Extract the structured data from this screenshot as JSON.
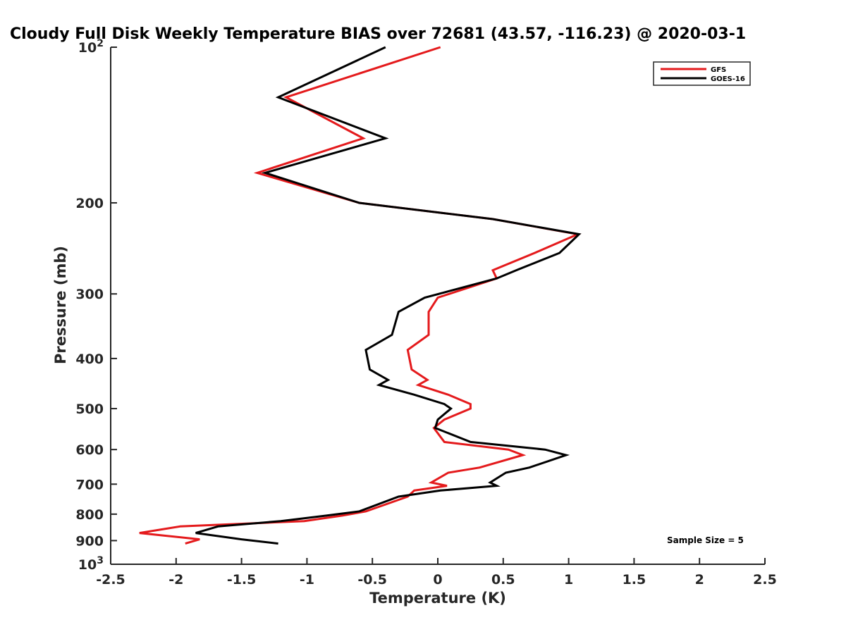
{
  "chart_data": {
    "type": "line",
    "title": "Cloudy Full Disk Weekly Temperature BIAS over 72681 (43.57, -116.23) @ 2020-03-1",
    "xlabel": "Temperature (K)",
    "ylabel": "Pressure (mb)",
    "xlim": [
      -2.5,
      2.5
    ],
    "ylim": [
      100,
      1000
    ],
    "y_scale": "log",
    "y_reversed": true,
    "x_ticks": [
      "-2.5",
      "-2",
      "-1.5",
      "-1",
      "-0.5",
      "0",
      "0.5",
      "1",
      "1.5",
      "2",
      "2.5"
    ],
    "y_ticks": [
      {
        "value": 100,
        "base": "10",
        "exp": "2",
        "label": ""
      },
      {
        "value": 200,
        "base": "",
        "exp": "",
        "label": "200"
      },
      {
        "value": 300,
        "base": "",
        "exp": "",
        "label": "300"
      },
      {
        "value": 400,
        "base": "",
        "exp": "",
        "label": "400"
      },
      {
        "value": 500,
        "base": "",
        "exp": "",
        "label": "500"
      },
      {
        "value": 600,
        "base": "",
        "exp": "",
        "label": "600"
      },
      {
        "value": 700,
        "base": "",
        "exp": "",
        "label": "700"
      },
      {
        "value": 800,
        "base": "",
        "exp": "",
        "label": "800"
      },
      {
        "value": 900,
        "base": "",
        "exp": "",
        "label": "900"
      },
      {
        "value": 1000,
        "base": "10",
        "exp": "3",
        "label": ""
      }
    ],
    "grid": false,
    "legend_position": "top-right",
    "annotation": "Sample Size = 5",
    "series": [
      {
        "name": "GFS",
        "color": "#e41a1c",
        "points": [
          [
            0.02,
            100
          ],
          [
            -1.16,
            125
          ],
          [
            -0.57,
            150
          ],
          [
            -1.38,
            175
          ],
          [
            -0.6,
            200
          ],
          [
            0.42,
            215
          ],
          [
            1.07,
            230
          ],
          [
            0.74,
            250
          ],
          [
            0.42,
            270
          ],
          [
            0.45,
            280
          ],
          [
            0.0,
            305
          ],
          [
            -0.07,
            325
          ],
          [
            -0.07,
            360
          ],
          [
            -0.23,
            385
          ],
          [
            -0.2,
            420
          ],
          [
            -0.08,
            440
          ],
          [
            -0.15,
            450
          ],
          [
            0.08,
            470
          ],
          [
            0.25,
            490
          ],
          [
            0.25,
            500
          ],
          [
            0.05,
            525
          ],
          [
            -0.03,
            545
          ],
          [
            0.05,
            580
          ],
          [
            0.54,
            600
          ],
          [
            0.65,
            615
          ],
          [
            0.32,
            650
          ],
          [
            0.08,
            665
          ],
          [
            -0.05,
            695
          ],
          [
            0.07,
            705
          ],
          [
            -0.18,
            720
          ],
          [
            -0.23,
            740
          ],
          [
            -0.55,
            790
          ],
          [
            -0.73,
            805
          ],
          [
            -1.02,
            825
          ],
          [
            -1.97,
            845
          ],
          [
            -2.28,
            870
          ],
          [
            -1.82,
            895
          ],
          [
            -1.93,
            912
          ]
        ]
      },
      {
        "name": "GOES-16",
        "color": "#000000",
        "points": [
          [
            -0.4,
            100
          ],
          [
            -1.22,
            125
          ],
          [
            -0.4,
            150
          ],
          [
            -1.32,
            175
          ],
          [
            -0.6,
            200
          ],
          [
            0.42,
            215
          ],
          [
            1.08,
            230
          ],
          [
            0.93,
            250
          ],
          [
            0.6,
            270
          ],
          [
            0.45,
            280
          ],
          [
            -0.1,
            305
          ],
          [
            -0.3,
            325
          ],
          [
            -0.35,
            360
          ],
          [
            -0.55,
            385
          ],
          [
            -0.52,
            420
          ],
          [
            -0.38,
            440
          ],
          [
            -0.45,
            450
          ],
          [
            -0.18,
            470
          ],
          [
            0.05,
            490
          ],
          [
            0.1,
            500
          ],
          [
            0.0,
            525
          ],
          [
            -0.02,
            545
          ],
          [
            0.25,
            580
          ],
          [
            0.82,
            600
          ],
          [
            0.98,
            615
          ],
          [
            0.7,
            650
          ],
          [
            0.52,
            665
          ],
          [
            0.4,
            695
          ],
          [
            0.45,
            705
          ],
          [
            0.02,
            720
          ],
          [
            -0.3,
            740
          ],
          [
            -0.6,
            790
          ],
          [
            -0.85,
            805
          ],
          [
            -1.2,
            825
          ],
          [
            -1.68,
            845
          ],
          [
            -1.85,
            870
          ],
          [
            -1.5,
            895
          ],
          [
            -1.22,
            912
          ]
        ]
      }
    ]
  }
}
